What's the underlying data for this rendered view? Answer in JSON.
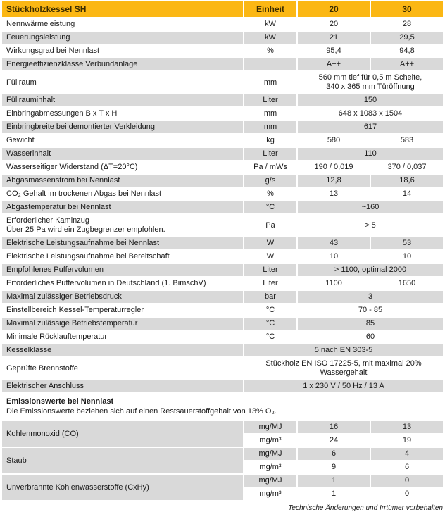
{
  "title_row": {
    "title": "Stückholzkessel SH",
    "unit": "Einheit",
    "col20": "20",
    "col30": "30"
  },
  "colors": {
    "header_bg": "#fbb714",
    "header_text": "#3b2c00",
    "row_gray": "#d9d9d9",
    "row_white": "#ffffff"
  },
  "rows": [
    {
      "label": "Nennwärmeleistung",
      "unit": "kW",
      "v20": "20",
      "v30": "28"
    },
    {
      "label": "Feuerungsleistung",
      "unit": "kW",
      "v20": "21",
      "v30": "29,5"
    },
    {
      "label": "Wirkungsgrad bei Nennlast",
      "unit": "%",
      "v20": "95,4",
      "v30": "94,8"
    },
    {
      "label": "Energieeffizienzklasse Verbundanlage",
      "unit": "",
      "v20": "A++",
      "v30": "A++"
    },
    {
      "label": "Füllraum",
      "unit": "mm",
      "value": "560 mm tief für 0,5 m Scheite,\n340 x 365 mm Türöffnung"
    },
    {
      "label": "Füllrauminhalt",
      "unit": "Liter",
      "value": "150"
    },
    {
      "label": "Einbringabmessungen B x T x H",
      "unit": "mm",
      "value": "648 x 1083 x 1504"
    },
    {
      "label": "Einbringbreite bei demontierter Verkleidung",
      "unit": "mm",
      "value": "617"
    },
    {
      "label": "Gewicht",
      "unit": "kg",
      "v20": "580",
      "v30": "583"
    },
    {
      "label": "Wasserinhalt",
      "unit": "Liter",
      "value": "110"
    },
    {
      "label": "Wasserseitiger Widerstand (ΔT=20°C)",
      "unit": "Pa / mWs",
      "v20": "190 / 0,019",
      "v30": "370 / 0,037"
    },
    {
      "label": "Abgasmassenstrom bei Nennlast",
      "unit": "g/s",
      "v20": "12,8",
      "v30": "18,6"
    },
    {
      "label": "CO₂ Gehalt im trockenen Abgas bei Nennlast",
      "unit": "%",
      "v20": "13",
      "v30": "14"
    },
    {
      "label": "Abgastemperatur bei Nennlast",
      "unit": "°C",
      "value": "~160"
    },
    {
      "label": "Erforderlicher Kaminzug\nÜber 25 Pa wird ein Zugbegrenzer empfohlen.",
      "unit": "Pa",
      "value": "> 5"
    },
    {
      "label": "Elektrische Leistungsaufnahme bei Nennlast",
      "unit": "W",
      "v20": "43",
      "v30": "53"
    },
    {
      "label": "Elektrische Leistungsaufnahme bei Bereitschaft",
      "unit": "W",
      "v20": "10",
      "v30": "10"
    },
    {
      "label": "Empfohlenes Puffervolumen",
      "unit": "Liter",
      "value": "> 1100, optimal 2000"
    },
    {
      "label": "Erforderliches Puffervolumen in Deutschland (1. BimschV)",
      "unit": "Liter",
      "v20": "1100",
      "v30": "1650"
    },
    {
      "label": "Maximal zulässiger Betriebsdruck",
      "unit": "bar",
      "value": "3"
    },
    {
      "label": "Einstellbereich Kessel-Temperaturregler",
      "unit": "°C",
      "value": "70 - 85"
    },
    {
      "label": "Maximal zulässige Betriebstemperatur",
      "unit": "°C",
      "value": "85"
    },
    {
      "label": "Minimale Rücklauftemperatur",
      "unit": "°C",
      "value": "60"
    },
    {
      "label": "Kesselklasse",
      "value": "5 nach EN 303-5"
    },
    {
      "label": "Geprüfte Brennstoffe",
      "value": "Stückholz EN ISO 17225-5, mit maximal 20% Wassergehalt"
    },
    {
      "label": "Elektrischer Anschluss",
      "value": "1 x 230 V / 50 Hz / 13 A"
    }
  ],
  "emissions": {
    "title": "Emissionswerte bei Nennlast",
    "note": "Die Emissionswerte beziehen sich auf einen Restsauerstoffgehalt von 13% O₂.",
    "blocks": [
      {
        "label": "Kohlenmonoxid (CO)",
        "rows": [
          {
            "unit": "mg/MJ",
            "v20": "16",
            "v30": "13"
          },
          {
            "unit": "mg/m³",
            "v20": "24",
            "v30": "19"
          }
        ]
      },
      {
        "label": "Staub",
        "rows": [
          {
            "unit": "mg/MJ",
            "v20": "6",
            "v30": "4"
          },
          {
            "unit": "mg/m³",
            "v20": "9",
            "v30": "6"
          }
        ]
      },
      {
        "label": "Unverbrannte Kohlenwasserstoffe (CxHy)",
        "rows": [
          {
            "unit": "mg/MJ",
            "v20": "1",
            "v30": "0"
          },
          {
            "unit": "mg/m³",
            "v20": "1",
            "v30": "0"
          }
        ]
      }
    ]
  },
  "footer": "Technische Änderungen und Irrtümer vorbehalten"
}
